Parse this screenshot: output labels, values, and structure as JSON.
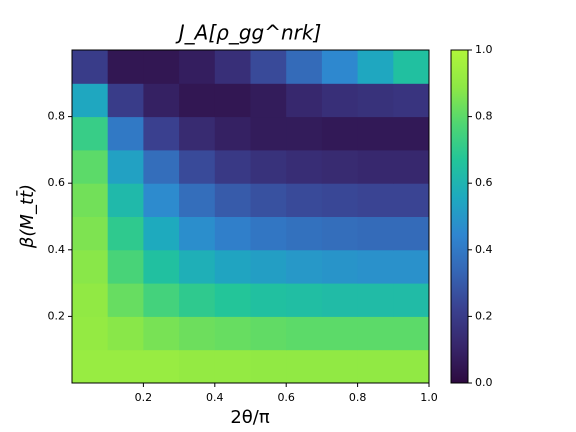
{
  "chart_data": {
    "type": "heatmap",
    "title": "J_A[ρ_gg^nrk]",
    "x_label": "2θ/π",
    "y_label": "β(M_tt̄)",
    "x": [
      0.05,
      0.15,
      0.25,
      0.35,
      0.45,
      0.55,
      0.65,
      0.75,
      0.85,
      0.95
    ],
    "y": [
      0.05,
      0.15,
      0.25,
      0.35,
      0.45,
      0.55,
      0.65,
      0.75,
      0.85,
      0.95
    ],
    "z": [
      [
        0.92,
        0.92,
        0.92,
        0.91,
        0.91,
        0.9,
        0.9,
        0.9,
        0.9,
        0.9
      ],
      [
        0.91,
        0.88,
        0.85,
        0.83,
        0.82,
        0.81,
        0.8,
        0.8,
        0.8,
        0.8
      ],
      [
        0.9,
        0.82,
        0.75,
        0.7,
        0.67,
        0.65,
        0.64,
        0.63,
        0.63,
        0.63
      ],
      [
        0.88,
        0.76,
        0.65,
        0.58,
        0.54,
        0.52,
        0.5,
        0.49,
        0.48,
        0.48
      ],
      [
        0.86,
        0.7,
        0.56,
        0.47,
        0.42,
        0.39,
        0.37,
        0.36,
        0.35,
        0.35
      ],
      [
        0.84,
        0.62,
        0.46,
        0.36,
        0.3,
        0.27,
        0.25,
        0.24,
        0.23,
        0.23
      ],
      [
        0.8,
        0.53,
        0.36,
        0.25,
        0.19,
        0.16,
        0.14,
        0.13,
        0.12,
        0.12
      ],
      [
        0.72,
        0.4,
        0.22,
        0.13,
        0.09,
        0.07,
        0.07,
        0.06,
        0.06,
        0.06
      ],
      [
        0.55,
        0.2,
        0.09,
        0.05,
        0.05,
        0.07,
        0.12,
        0.15,
        0.16,
        0.17
      ],
      [
        0.2,
        0.05,
        0.05,
        0.08,
        0.15,
        0.25,
        0.35,
        0.45,
        0.55,
        0.65
      ]
    ],
    "colormap": "viridis",
    "xlim": [
      0,
      1
    ],
    "ylim": [
      0,
      1
    ],
    "xticks": [
      0.2,
      0.4,
      0.6,
      0.8,
      {
        "value": 1,
        "label": "1.0"
      }
    ],
    "yticks": [
      0.2,
      0.4,
      0.6,
      0.8
    ],
    "zlim": [
      0,
      1
    ],
    "zticks": [
      {
        "value": 0,
        "label": "0.0"
      },
      0.2,
      0.4,
      0.6,
      0.8,
      {
        "value": 1,
        "label": "1.0"
      }
    ]
  }
}
